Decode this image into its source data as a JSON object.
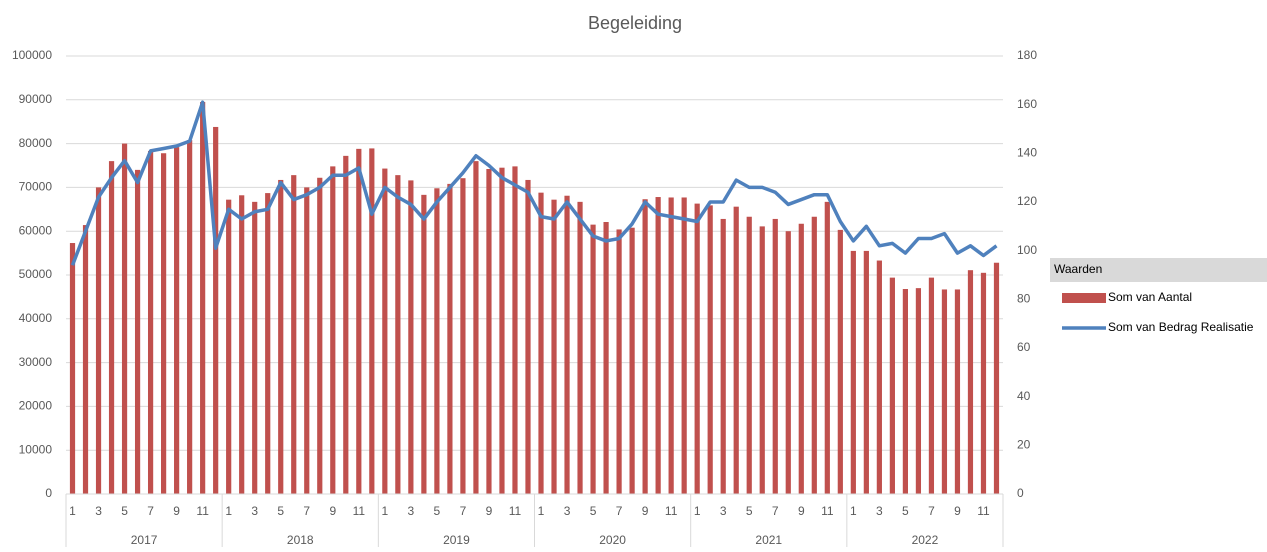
{
  "chart_data": {
    "type": "combo",
    "title": "Begeleiding",
    "categories": [
      "1",
      null,
      "3",
      null,
      "5",
      null,
      "7",
      null,
      "9",
      null,
      "11",
      null,
      "1",
      null,
      "3",
      null,
      "5",
      null,
      "7",
      null,
      "9",
      null,
      "11",
      null,
      "1",
      null,
      "3",
      null,
      "5",
      null,
      "7",
      null,
      "9",
      null,
      "11",
      null,
      "1",
      null,
      "3",
      null,
      "5",
      null,
      "7",
      null,
      "9",
      null,
      "11",
      null,
      "1",
      null,
      "3",
      null,
      "5",
      null,
      "7",
      null,
      "9",
      null,
      "11",
      null,
      "1",
      null,
      "3",
      null,
      "5",
      null,
      "7",
      null,
      "9",
      null,
      "11",
      null
    ],
    "groups": [
      "2017",
      "2018",
      "2019",
      "2020",
      "2021",
      "2022"
    ],
    "series": [
      {
        "name": "Som van Aantal",
        "type": "bar",
        "color": "#c0504d",
        "values": [
          57300,
          61400,
          70000,
          76000,
          80000,
          74000,
          78300,
          77800,
          79200,
          80800,
          89500,
          83800,
          67200,
          68200,
          66700,
          68700,
          71700,
          72800,
          70000,
          72200,
          74800,
          77200,
          78800,
          78900,
          74300,
          72800,
          71600,
          68300,
          69800,
          70800,
          72100,
          76000,
          74200,
          74500,
          74800,
          71700,
          68800,
          67200,
          68100,
          66700,
          61500,
          62100,
          60400,
          60800,
          67300,
          67800,
          67700,
          67700,
          66300,
          65900,
          62800,
          65600,
          63300,
          61100,
          62800,
          60000,
          61700,
          63300,
          66700,
          60300,
          55500,
          55500,
          53300,
          49400,
          46800,
          47000,
          49400,
          46700,
          46700,
          51100,
          50500,
          52800
        ]
      },
      {
        "name": "Som van Bedrag Realisatie",
        "type": "line",
        "axis": "y2",
        "color": "#4f81bd",
        "values": [
          94,
          108,
          122,
          130,
          137,
          128,
          141,
          142,
          143,
          145,
          161,
          101,
          117,
          113,
          116,
          117,
          128,
          121,
          123,
          126,
          131,
          131,
          134,
          115,
          126,
          122,
          119,
          113,
          120,
          126,
          132,
          139,
          135,
          130,
          127,
          124,
          114,
          113,
          120,
          113,
          106,
          104,
          105,
          111,
          120,
          115,
          114,
          113,
          112,
          120,
          120,
          129,
          126,
          126,
          124,
          119,
          121,
          123,
          123,
          112,
          104,
          110,
          102,
          103,
          99,
          105,
          105,
          107,
          99,
          102,
          98,
          102
        ]
      }
    ],
    "ylim": [
      0,
      100000
    ],
    "yticks": [
      0,
      10000,
      20000,
      30000,
      40000,
      50000,
      60000,
      70000,
      80000,
      90000,
      100000
    ],
    "y2lim": [
      0,
      180
    ],
    "y2ticks": [
      0,
      20,
      40,
      60,
      80,
      100,
      120,
      140,
      160,
      180
    ],
    "grid": true,
    "legend_title": "Waarden",
    "legend": "right"
  }
}
